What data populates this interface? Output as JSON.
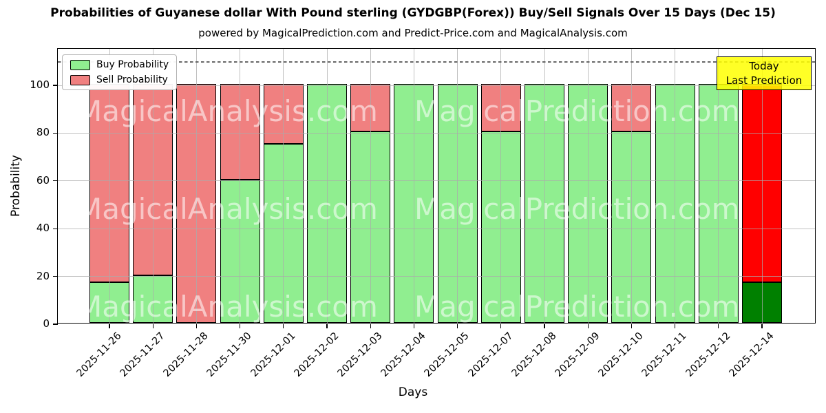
{
  "figure": {
    "title": "Probabilities of Guyanese dollar With Pound sterling (GYDGBP(Forex)) Buy/Sell Signals Over 15 Days (Dec 15)",
    "subtitle": "powered by MagicalPrediction.com and Predict-Price.com and MagicalAnalysis.com"
  },
  "chart_data": {
    "type": "bar",
    "stacked": true,
    "title": "Probabilities of Guyanese dollar With Pound sterling (GYDGBP(Forex)) Buy/Sell Signals Over 15 Days (Dec 15)",
    "xlabel": "Days",
    "ylabel": "Probability",
    "ylim": [
      0,
      115
    ],
    "yticks": [
      0,
      20,
      40,
      60,
      80,
      100
    ],
    "grid": true,
    "legend_position": "upper left",
    "dashed_line_y": 110,
    "categories": [
      "2025-11-26",
      "2025-11-27",
      "2025-11-28",
      "2025-11-30",
      "2025-12-01",
      "2025-12-02",
      "2025-12-03",
      "2025-12-04",
      "2025-12-05",
      "2025-12-07",
      "2025-12-08",
      "2025-12-09",
      "2025-12-10",
      "2025-12-11",
      "2025-12-12",
      "2025-12-14"
    ],
    "series": [
      {
        "name": "Buy Probability",
        "color": "#90EE90",
        "values": [
          17,
          20,
          0,
          60,
          75,
          100,
          80,
          100,
          100,
          80,
          100,
          100,
          80,
          100,
          100,
          17
        ]
      },
      {
        "name": "Sell Probability",
        "color": "#F08080",
        "values": [
          83,
          80,
          100,
          40,
          25,
          0,
          20,
          0,
          0,
          20,
          0,
          0,
          20,
          0,
          0,
          83
        ]
      }
    ],
    "today_bar": {
      "index": 15,
      "buy_color": "#008000",
      "sell_color": "#FF0000"
    },
    "annotation": {
      "line1": "Today",
      "line2": "Last Prediction",
      "bg_color": "#FFFF00"
    },
    "watermark_left": "MagicalAnalysis.com",
    "watermark_right": "MagicalPrediction.com"
  }
}
